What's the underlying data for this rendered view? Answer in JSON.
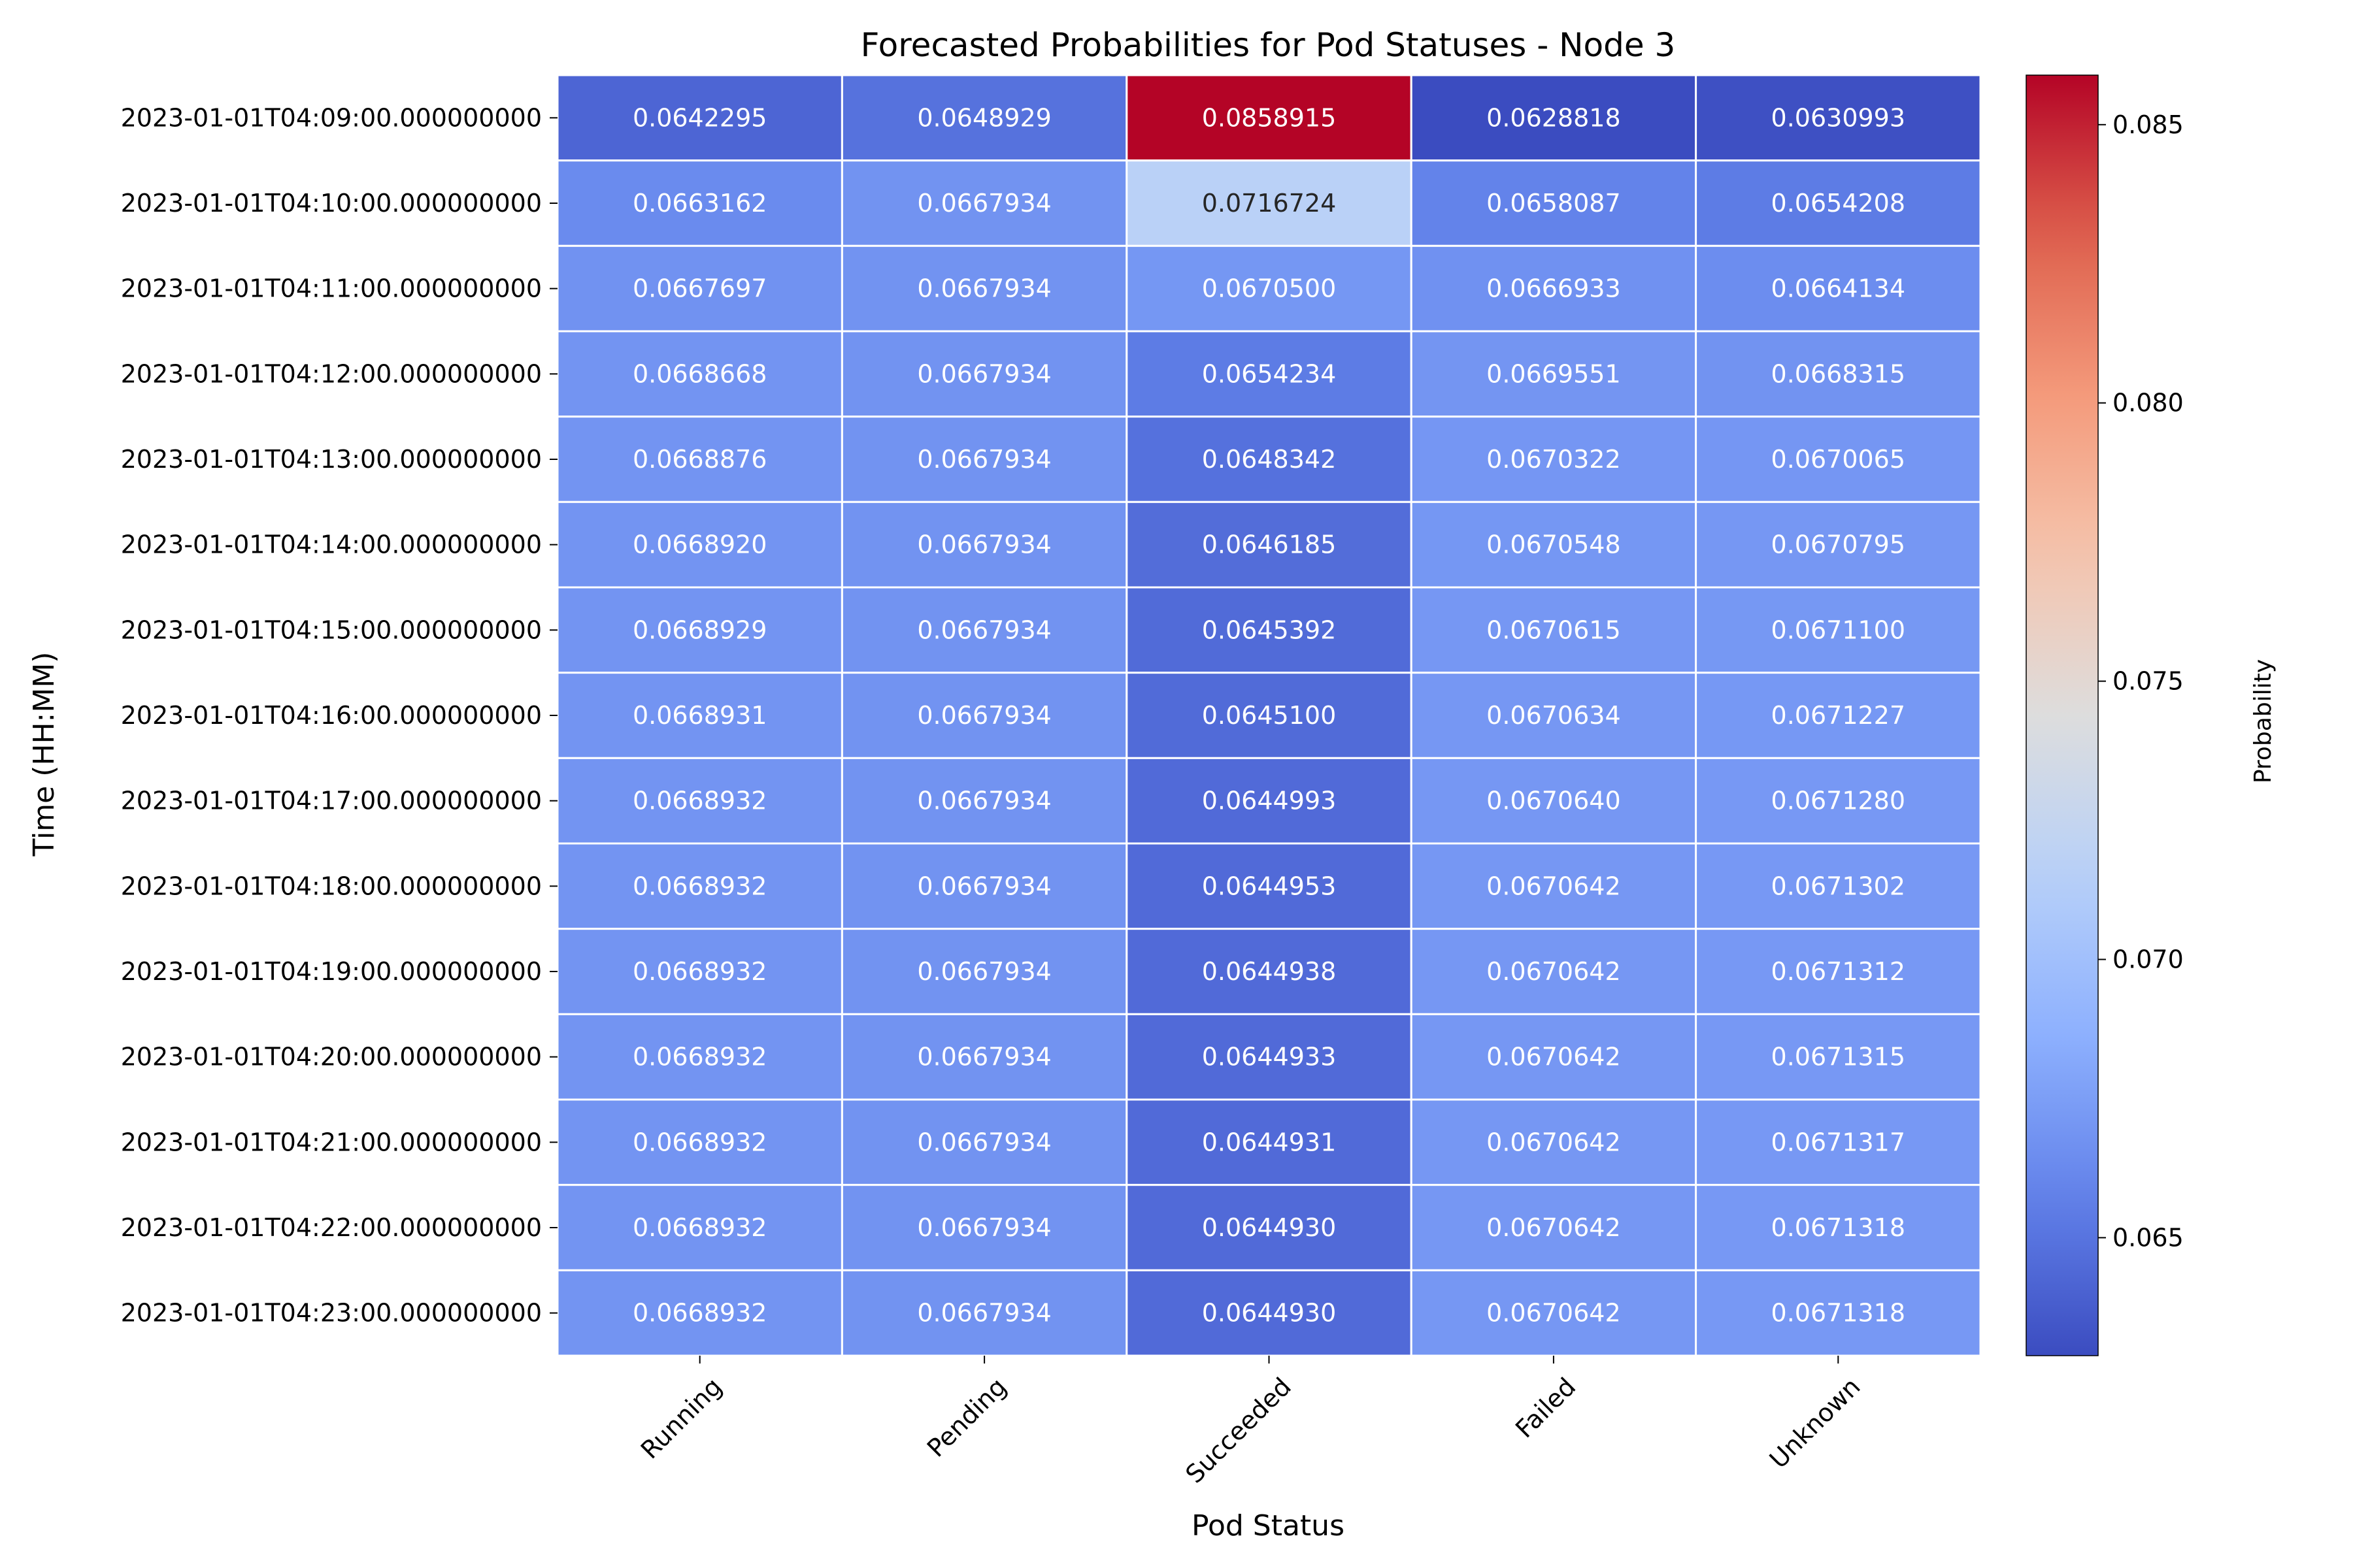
{
  "chart_data": {
    "type": "heatmap",
    "title": "Forecasted Probabilities for Pod Statuses - Node 3",
    "xlabel": "Pod Status",
    "ylabel": "Time (HH:MM)",
    "colorbar_label": "Probability",
    "colormap": "coolwarm",
    "color_range": [
      0.06288,
      0.08589
    ],
    "colorbar_ticks": [
      "0.065",
      "0.070",
      "0.075",
      "0.080",
      "0.085"
    ],
    "columns": [
      "Running",
      "Pending",
      "Succeeded",
      "Failed",
      "Unknown"
    ],
    "rows": [
      "2023-01-01T04:09:00.000000000",
      "2023-01-01T04:10:00.000000000",
      "2023-01-01T04:11:00.000000000",
      "2023-01-01T04:12:00.000000000",
      "2023-01-01T04:13:00.000000000",
      "2023-01-01T04:14:00.000000000",
      "2023-01-01T04:15:00.000000000",
      "2023-01-01T04:16:00.000000000",
      "2023-01-01T04:17:00.000000000",
      "2023-01-01T04:18:00.000000000",
      "2023-01-01T04:19:00.000000000",
      "2023-01-01T04:20:00.000000000",
      "2023-01-01T04:21:00.000000000",
      "2023-01-01T04:22:00.000000000",
      "2023-01-01T04:23:00.000000000"
    ],
    "values": [
      [
        "0.0642295",
        "0.0648929",
        "0.0858915",
        "0.0628818",
        "0.0630993"
      ],
      [
        "0.0663162",
        "0.0667934",
        "0.0716724",
        "0.0658087",
        "0.0654208"
      ],
      [
        "0.0667697",
        "0.0667934",
        "0.0670500",
        "0.0666933",
        "0.0664134"
      ],
      [
        "0.0668668",
        "0.0667934",
        "0.0654234",
        "0.0669551",
        "0.0668315"
      ],
      [
        "0.0668876",
        "0.0667934",
        "0.0648342",
        "0.0670322",
        "0.0670065"
      ],
      [
        "0.0668920",
        "0.0667934",
        "0.0646185",
        "0.0670548",
        "0.0670795"
      ],
      [
        "0.0668929",
        "0.0667934",
        "0.0645392",
        "0.0670615",
        "0.0671100"
      ],
      [
        "0.0668931",
        "0.0667934",
        "0.0645100",
        "0.0670634",
        "0.0671227"
      ],
      [
        "0.0668932",
        "0.0667934",
        "0.0644993",
        "0.0670640",
        "0.0671280"
      ],
      [
        "0.0668932",
        "0.0667934",
        "0.0644953",
        "0.0670642",
        "0.0671302"
      ],
      [
        "0.0668932",
        "0.0667934",
        "0.0644938",
        "0.0670642",
        "0.0671312"
      ],
      [
        "0.0668932",
        "0.0667934",
        "0.0644933",
        "0.0670642",
        "0.0671315"
      ],
      [
        "0.0668932",
        "0.0667934",
        "0.0644931",
        "0.0670642",
        "0.0671317"
      ],
      [
        "0.0668932",
        "0.0667934",
        "0.0644930",
        "0.0670642",
        "0.0671318"
      ],
      [
        "0.0668932",
        "0.0667934",
        "0.0644930",
        "0.0670642",
        "0.0671318"
      ]
    ]
  }
}
